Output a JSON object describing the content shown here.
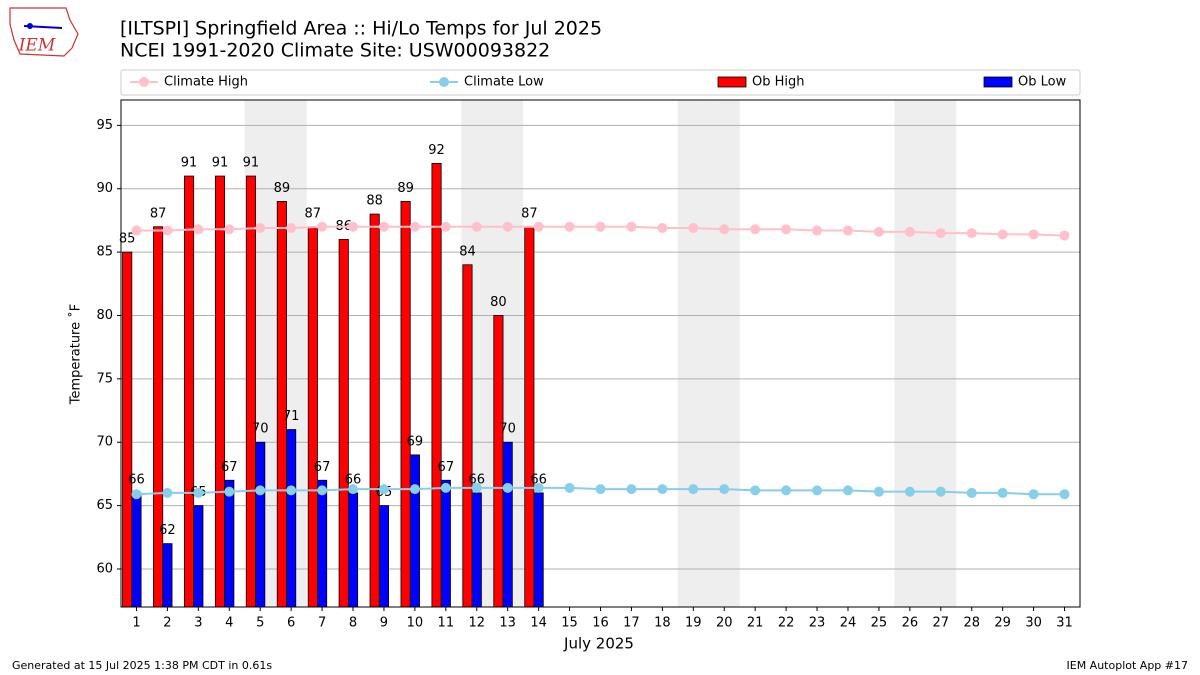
{
  "logo_text": "IEM",
  "footer_left": "Generated at 15 Jul 2025 1:38 PM CDT in 0.61s",
  "footer_right": "IEM Autoplot App #17",
  "chart_data": {
    "type": "bar_line",
    "title": "[ILTSPI] Springfield Area :: Hi/Lo Temps for Jul 2025",
    "subtitle": "NCEI 1991-2020 Climate Site: USW00093822",
    "x_label": "July 2025",
    "y_label": "Temperature ˚F",
    "x": [
      1,
      2,
      3,
      4,
      5,
      6,
      7,
      8,
      9,
      10,
      11,
      12,
      13,
      14,
      15,
      16,
      17,
      18,
      19,
      20,
      21,
      22,
      23,
      24,
      25,
      26,
      27,
      28,
      29,
      30,
      31
    ],
    "xlim": [
      0.5,
      31.5
    ],
    "xticks": [
      1,
      2,
      3,
      4,
      5,
      6,
      7,
      8,
      9,
      10,
      11,
      12,
      13,
      14,
      15,
      16,
      17,
      18,
      19,
      20,
      21,
      22,
      23,
      24,
      25,
      26,
      27,
      28,
      29,
      30,
      31
    ],
    "ylim": [
      57,
      97
    ],
    "yticks": [
      60,
      65,
      70,
      75,
      80,
      85,
      90,
      95
    ],
    "grid": true,
    "weekend_shading": [
      [
        4.5,
        6.5
      ],
      [
        11.5,
        13.5
      ],
      [
        18.5,
        20.5
      ],
      [
        25.5,
        27.5
      ]
    ],
    "series": [
      {
        "name": "Climate High",
        "type": "line",
        "color": "#ffc0cb",
        "values": [
          86.7,
          86.7,
          86.8,
          86.8,
          86.9,
          86.9,
          87.0,
          87.0,
          87.0,
          87.0,
          87.0,
          87.0,
          87.0,
          87.0,
          87.0,
          87.0,
          87.0,
          86.9,
          86.9,
          86.8,
          86.8,
          86.8,
          86.7,
          86.7,
          86.6,
          86.6,
          86.5,
          86.5,
          86.4,
          86.4,
          86.3
        ]
      },
      {
        "name": "Climate Low",
        "type": "line",
        "color": "#87ceeb",
        "values": [
          65.9,
          66.0,
          66.0,
          66.1,
          66.2,
          66.2,
          66.2,
          66.3,
          66.3,
          66.3,
          66.4,
          66.4,
          66.4,
          66.4,
          66.4,
          66.3,
          66.3,
          66.3,
          66.3,
          66.3,
          66.2,
          66.2,
          66.2,
          66.2,
          66.1,
          66.1,
          66.1,
          66.0,
          66.0,
          65.9,
          65.9
        ]
      },
      {
        "name": "Ob High",
        "type": "bar",
        "color": "#ff0000",
        "values": [
          85,
          87,
          91,
          91,
          91,
          89,
          87,
          86,
          88,
          89,
          92,
          84,
          80,
          87,
          null,
          null,
          null,
          null,
          null,
          null,
          null,
          null,
          null,
          null,
          null,
          null,
          null,
          null,
          null,
          null,
          null
        ]
      },
      {
        "name": "Ob Low",
        "type": "bar",
        "color": "#0000ff",
        "values": [
          66,
          62,
          65,
          67,
          70,
          71,
          67,
          66,
          65,
          69,
          67,
          66,
          70,
          66,
          null,
          null,
          null,
          null,
          null,
          null,
          null,
          null,
          null,
          null,
          null,
          null,
          null,
          null,
          null,
          null,
          null
        ]
      }
    ]
  }
}
